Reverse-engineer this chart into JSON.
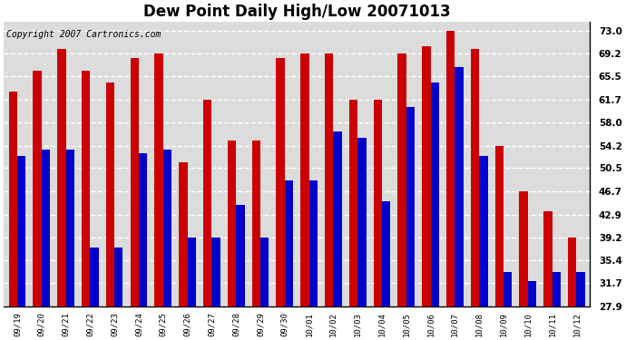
{
  "title": "Dew Point Daily High/Low 20071013",
  "copyright": "Copyright 2007 Cartronics.com",
  "categories": [
    "09/19",
    "09/20",
    "09/21",
    "09/22",
    "09/23",
    "09/24",
    "09/25",
    "09/26",
    "09/27",
    "09/28",
    "09/29",
    "09/30",
    "10/01",
    "10/02",
    "10/03",
    "10/04",
    "10/05",
    "10/06",
    "10/07",
    "10/08",
    "10/09",
    "10/10",
    "10/11",
    "10/12"
  ],
  "highs": [
    63.0,
    66.5,
    70.0,
    66.5,
    64.5,
    68.5,
    69.2,
    51.5,
    61.7,
    55.0,
    55.0,
    68.5,
    69.2,
    69.2,
    61.7,
    61.7,
    69.2,
    70.5,
    73.0,
    70.0,
    54.2,
    46.7,
    43.5,
    39.2
  ],
  "lows": [
    52.5,
    53.5,
    53.5,
    37.5,
    37.5,
    53.0,
    53.5,
    39.2,
    39.2,
    44.5,
    39.2,
    48.5,
    48.5,
    56.5,
    55.5,
    45.0,
    60.5,
    64.5,
    67.0,
    52.5,
    33.5,
    32.0,
    33.5,
    33.5
  ],
  "high_color": "#cc0000",
  "low_color": "#0000cc",
  "background_color": "#ffffff",
  "plot_bg_color": "#dcdcdc",
  "grid_color": "#ffffff",
  "ytick_values": [
    27.9,
    31.7,
    35.4,
    39.2,
    42.9,
    46.7,
    50.5,
    54.2,
    58.0,
    61.7,
    65.5,
    69.2,
    73.0
  ],
  "ylim_min": 27.9,
  "ylim_max": 74.5,
  "title_fontsize": 12,
  "copyright_fontsize": 7,
  "bar_width": 0.35
}
